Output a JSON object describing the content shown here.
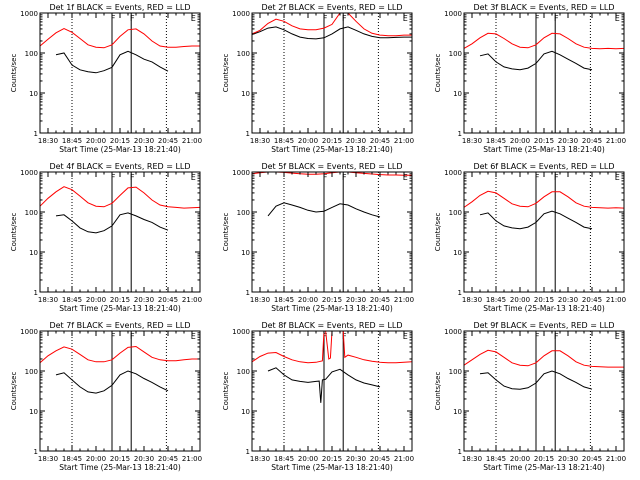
{
  "figure": {
    "background": "#ffffff",
    "axis_color": "#000000"
  },
  "common": {
    "ylabel": "Counts/sec",
    "xlabel": "Start Time (25-Mar-13 18:21:40)",
    "y_scale": "log",
    "ylim": [
      1,
      1000
    ],
    "ytick_labels": [
      "1",
      "10",
      "100",
      "1000"
    ],
    "black_color": "#000000",
    "red_color": "#ff0000",
    "marker_labels": [
      "F",
      "F",
      "E"
    ]
  },
  "chart_data": [
    {
      "type": "line",
      "title": "Det 1f BLACK = Events, RED = LLD",
      "xtick_labels": [
        "18:30",
        "18:45",
        "20:00",
        "20:15",
        "20:30",
        "20:45",
        "21:00"
      ],
      "series": [
        {
          "name": "BLACK = Events",
          "color": "#000000",
          "x": [
            0.1,
            0.15,
            0.2,
            0.25,
            0.3,
            0.35,
            0.4,
            0.45,
            0.5,
            0.55,
            0.6,
            0.65,
            0.7,
            0.75,
            0.8
          ],
          "y": [
            90,
            100,
            50,
            38,
            34,
            32,
            36,
            44,
            90,
            110,
            90,
            70,
            60,
            45,
            35
          ]
        },
        {
          "name": "RED = LLD",
          "color": "#ff0000",
          "x": [
            0.0,
            0.05,
            0.1,
            0.15,
            0.2,
            0.25,
            0.3,
            0.35,
            0.4,
            0.45,
            0.5,
            0.55,
            0.6,
            0.65,
            0.7,
            0.75,
            0.8,
            0.85,
            0.9,
            0.95,
            1.0
          ],
          "y": [
            150,
            220,
            320,
            410,
            330,
            230,
            160,
            140,
            135,
            160,
            260,
            380,
            400,
            300,
            200,
            150,
            140,
            140,
            145,
            150,
            150
          ]
        }
      ]
    },
    {
      "type": "line",
      "title": "Det 2f BLACK = Events, RED = LLD",
      "xtick_labels": [
        "18:30",
        "18:45",
        "20:00",
        "20:15",
        "20:30",
        "20:45",
        "21:00"
      ],
      "series": [
        {
          "name": "BLACK = Events",
          "color": "#000000",
          "x": [
            0.0,
            0.05,
            0.1,
            0.15,
            0.2,
            0.25,
            0.3,
            0.35,
            0.4,
            0.45,
            0.5,
            0.55,
            0.6,
            0.65,
            0.7,
            0.75,
            0.8,
            0.85,
            0.9,
            0.95,
            1.0
          ],
          "y": [
            290,
            340,
            420,
            450,
            380,
            300,
            250,
            230,
            225,
            240,
            300,
            400,
            450,
            370,
            300,
            260,
            240,
            240,
            245,
            250,
            250
          ]
        },
        {
          "name": "RED = LLD",
          "color": "#ff0000",
          "x": [
            0.0,
            0.05,
            0.1,
            0.15,
            0.2,
            0.25,
            0.3,
            0.35,
            0.4,
            0.45,
            0.5,
            0.55,
            0.6,
            0.65,
            0.7,
            0.75,
            0.8,
            0.85,
            0.9,
            0.95,
            1.0
          ],
          "y": [
            300,
            370,
            550,
            700,
            620,
            480,
            400,
            380,
            380,
            420,
            520,
            1000,
            1050,
            620,
            400,
            310,
            280,
            270,
            270,
            280,
            280
          ]
        }
      ]
    },
    {
      "type": "line",
      "title": "Det 3f BLACK = Events, RED = LLD",
      "xtick_labels": [
        "18:30",
        "18:45",
        "20:00",
        "20:15",
        "20:30",
        "20:45",
        "21:00"
      ],
      "series": [
        {
          "name": "BLACK = Events",
          "color": "#000000",
          "x": [
            0.1,
            0.15,
            0.2,
            0.25,
            0.3,
            0.35,
            0.4,
            0.45,
            0.5,
            0.55,
            0.6,
            0.65,
            0.7,
            0.75,
            0.8
          ],
          "y": [
            85,
            95,
            60,
            45,
            40,
            38,
            42,
            55,
            95,
            110,
            90,
            70,
            55,
            42,
            38
          ]
        },
        {
          "name": "RED = LLD",
          "color": "#ff0000",
          "x": [
            0.0,
            0.05,
            0.1,
            0.15,
            0.2,
            0.25,
            0.3,
            0.35,
            0.4,
            0.45,
            0.5,
            0.55,
            0.6,
            0.65,
            0.7,
            0.75,
            0.8,
            0.85,
            0.9,
            0.95,
            1.0
          ],
          "y": [
            130,
            170,
            240,
            310,
            300,
            230,
            170,
            140,
            135,
            160,
            240,
            310,
            300,
            230,
            170,
            140,
            130,
            128,
            130,
            128,
            130
          ]
        }
      ]
    },
    {
      "type": "line",
      "title": "Det 4f BLACK = Events, RED = LLD",
      "xtick_labels": [
        "18:30",
        "18:45",
        "20:00",
        "20:15",
        "20:30",
        "20:45",
        "21:00"
      ],
      "series": [
        {
          "name": "BLACK = Events",
          "color": "#000000",
          "x": [
            0.1,
            0.15,
            0.2,
            0.25,
            0.3,
            0.35,
            0.4,
            0.45,
            0.5,
            0.55,
            0.6,
            0.65,
            0.7,
            0.75,
            0.8
          ],
          "y": [
            80,
            85,
            60,
            40,
            32,
            30,
            34,
            45,
            85,
            95,
            80,
            65,
            55,
            42,
            35
          ]
        },
        {
          "name": "RED = LLD",
          "color": "#ff0000",
          "x": [
            0.0,
            0.05,
            0.1,
            0.15,
            0.2,
            0.25,
            0.3,
            0.35,
            0.4,
            0.45,
            0.5,
            0.55,
            0.6,
            0.65,
            0.7,
            0.75,
            0.8,
            0.85,
            0.9,
            0.95,
            1.0
          ],
          "y": [
            140,
            220,
            320,
            430,
            360,
            250,
            170,
            140,
            135,
            165,
            260,
            400,
            420,
            300,
            200,
            150,
            135,
            130,
            125,
            128,
            130
          ]
        }
      ]
    },
    {
      "type": "line",
      "title": "Det 5f BLACK = Events, RED = LLD",
      "xtick_labels": [
        "18:30",
        "18:45",
        "20:00",
        "20:15",
        "20:30",
        "20:45",
        "21:00"
      ],
      "series": [
        {
          "name": "BLACK = Events",
          "color": "#000000",
          "x": [
            0.1,
            0.15,
            0.2,
            0.25,
            0.3,
            0.35,
            0.4,
            0.45,
            0.5,
            0.55,
            0.6,
            0.65,
            0.7,
            0.75,
            0.8
          ],
          "y": [
            80,
            140,
            170,
            150,
            130,
            110,
            100,
            105,
            130,
            160,
            150,
            120,
            100,
            85,
            75
          ]
        },
        {
          "name": "RED = LLD",
          "color": "#ff0000",
          "x": [
            0.0,
            0.05,
            0.1,
            0.15,
            0.2,
            0.25,
            0.3,
            0.35,
            0.4,
            0.45,
            0.5,
            0.55,
            0.6,
            0.65,
            0.7,
            0.75,
            0.8,
            0.85,
            0.9,
            0.95,
            1.0
          ],
          "y": [
            900,
            960,
            1000,
            1000,
            980,
            940,
            900,
            880,
            880,
            900,
            960,
            1000,
            1000,
            960,
            920,
            890,
            860,
            840,
            840,
            830,
            830
          ]
        }
      ]
    },
    {
      "type": "line",
      "title": "Det 6f BLACK = Events, RED = LLD",
      "xtick_labels": [
        "18:30",
        "18:45",
        "20:00",
        "20:15",
        "20:30",
        "20:45",
        "21:00"
      ],
      "series": [
        {
          "name": "BLACK = Events",
          "color": "#000000",
          "x": [
            0.1,
            0.15,
            0.2,
            0.25,
            0.3,
            0.35,
            0.4,
            0.45,
            0.5,
            0.55,
            0.6,
            0.65,
            0.7,
            0.75,
            0.8
          ],
          "y": [
            85,
            95,
            60,
            45,
            40,
            38,
            42,
            55,
            90,
            105,
            90,
            70,
            55,
            42,
            38
          ]
        },
        {
          "name": "RED = LLD",
          "color": "#ff0000",
          "x": [
            0.0,
            0.05,
            0.1,
            0.15,
            0.2,
            0.25,
            0.3,
            0.35,
            0.4,
            0.45,
            0.5,
            0.55,
            0.6,
            0.65,
            0.7,
            0.75,
            0.8,
            0.85,
            0.9,
            0.95,
            1.0
          ],
          "y": [
            130,
            180,
            260,
            330,
            300,
            220,
            160,
            140,
            135,
            165,
            240,
            320,
            320,
            240,
            170,
            140,
            130,
            128,
            125,
            128,
            125
          ]
        }
      ]
    },
    {
      "type": "line",
      "title": "Det 7f BLACK = Events, RED = LLD",
      "xtick_labels": [
        "18:30",
        "18:45",
        "20:00",
        "20:15",
        "20:30",
        "20:45",
        "21:00"
      ],
      "series": [
        {
          "name": "BLACK = Events",
          "color": "#000000",
          "x": [
            0.1,
            0.15,
            0.2,
            0.25,
            0.3,
            0.35,
            0.4,
            0.45,
            0.5,
            0.55,
            0.6,
            0.65,
            0.7,
            0.75,
            0.8
          ],
          "y": [
            80,
            90,
            60,
            40,
            30,
            28,
            32,
            44,
            80,
            100,
            85,
            65,
            52,
            40,
            32
          ]
        },
        {
          "name": "RED = LLD",
          "color": "#ff0000",
          "x": [
            0.0,
            0.05,
            0.1,
            0.15,
            0.2,
            0.25,
            0.3,
            0.35,
            0.4,
            0.45,
            0.5,
            0.55,
            0.6,
            0.65,
            0.7,
            0.75,
            0.8,
            0.85,
            0.9,
            0.95,
            1.0
          ],
          "y": [
            160,
            240,
            320,
            400,
            350,
            260,
            190,
            170,
            170,
            190,
            280,
            390,
            410,
            300,
            220,
            190,
            180,
            180,
            190,
            200,
            200
          ]
        }
      ]
    },
    {
      "type": "line",
      "title": "Det 8f BLACK = Events, RED = LLD",
      "xtick_labels": [
        "18:30",
        "18:45",
        "20:00",
        "20:15",
        "20:30",
        "20:45",
        "21:00"
      ],
      "series": [
        {
          "name": "BLACK = Events",
          "color": "#000000",
          "x": [
            0.1,
            0.15,
            0.2,
            0.25,
            0.3,
            0.35,
            0.4,
            0.42,
            0.43,
            0.44,
            0.46,
            0.5,
            0.55,
            0.6,
            0.65,
            0.7,
            0.75,
            0.8
          ],
          "y": [
            100,
            120,
            80,
            60,
            55,
            52,
            55,
            56,
            16,
            60,
            62,
            95,
            110,
            80,
            60,
            50,
            45,
            40
          ]
        },
        {
          "name": "RED = LLD",
          "color": "#ff0000",
          "x": [
            0.0,
            0.05,
            0.1,
            0.15,
            0.2,
            0.25,
            0.3,
            0.35,
            0.4,
            0.44,
            0.45,
            0.46,
            0.48,
            0.49,
            0.5,
            0.51,
            0.53,
            0.55,
            0.57,
            0.58,
            0.6,
            0.65,
            0.7,
            0.75,
            0.8,
            0.85,
            0.9,
            0.95,
            1.0
          ],
          "y": [
            170,
            230,
            280,
            290,
            230,
            190,
            170,
            160,
            165,
            180,
            1000,
            1000,
            200,
            210,
            1000,
            1000,
            1000,
            1000,
            1000,
            220,
            250,
            220,
            190,
            175,
            165,
            160,
            160,
            165,
            170
          ]
        }
      ]
    },
    {
      "type": "line",
      "title": "Det 9f BLACK = Events, RED = LLD",
      "xtick_labels": [
        "18:30",
        "18:45",
        "20:00",
        "20:15",
        "20:30",
        "20:45",
        "21:00"
      ],
      "series": [
        {
          "name": "BLACK = Events",
          "color": "#000000",
          "x": [
            0.1,
            0.15,
            0.2,
            0.25,
            0.3,
            0.35,
            0.4,
            0.45,
            0.5,
            0.55,
            0.6,
            0.65,
            0.7,
            0.75,
            0.8
          ],
          "y": [
            85,
            90,
            60,
            42,
            36,
            35,
            38,
            50,
            85,
            100,
            85,
            65,
            52,
            40,
            35
          ]
        },
        {
          "name": "RED = LLD",
          "color": "#ff0000",
          "x": [
            0.0,
            0.05,
            0.1,
            0.15,
            0.2,
            0.25,
            0.3,
            0.35,
            0.4,
            0.45,
            0.5,
            0.55,
            0.6,
            0.65,
            0.7,
            0.75,
            0.8,
            0.85,
            0.9,
            0.95,
            1.0
          ],
          "y": [
            140,
            190,
            260,
            330,
            300,
            220,
            160,
            140,
            135,
            160,
            240,
            320,
            320,
            240,
            170,
            140,
            130,
            128,
            125,
            125,
            125
          ]
        }
      ]
    }
  ]
}
